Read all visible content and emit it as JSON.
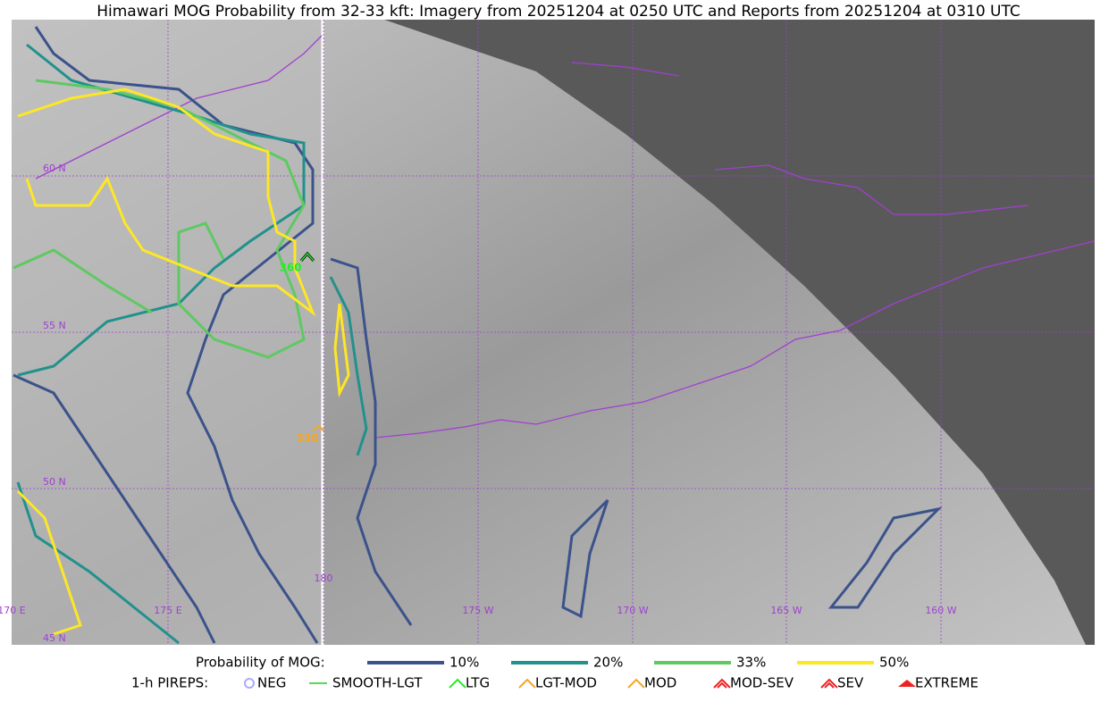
{
  "title": "Himawari MOG Probability from 32-33 kft: Imagery from 20251204 at 0250 UTC and Reports from 20251204 at 0310 UTC",
  "grid_labels": {
    "latitudes": [
      "60 N",
      "55 N",
      "50 N",
      "45 N"
    ],
    "longitudes": [
      "170 E",
      "175 E",
      "180",
      "175 W",
      "170 W",
      "165 W",
      "160 W"
    ]
  },
  "reports": [
    {
      "label": "360",
      "color": "#22ee22"
    },
    {
      "label": "330",
      "color": "#f5a623"
    }
  ],
  "legend": {
    "probability_label": "Probability of MOG:",
    "probability_levels": [
      {
        "label": "10%",
        "color": "#3b528b"
      },
      {
        "label": "20%",
        "color": "#21918c"
      },
      {
        "label": "33%",
        "color": "#5ec962"
      },
      {
        "label": "50%",
        "color": "#fde725"
      }
    ],
    "pirep_label": "1-h PIREPS:",
    "pirep_types": [
      {
        "label": "NEG",
        "color": "#aaaaff"
      },
      {
        "label": "SMOOTH-LGT",
        "color": "#22cc22"
      },
      {
        "label": "LTG",
        "color": "#22ee22"
      },
      {
        "label": "LGT-MOD",
        "color": "#f5a623"
      },
      {
        "label": "MOD",
        "color": "#f5a623"
      },
      {
        "label": "MOD-SEV",
        "color": "#ee2222"
      },
      {
        "label": "SEV",
        "color": "#ee2222"
      },
      {
        "label": "EXTREME",
        "color": "#ee2222"
      }
    ]
  }
}
